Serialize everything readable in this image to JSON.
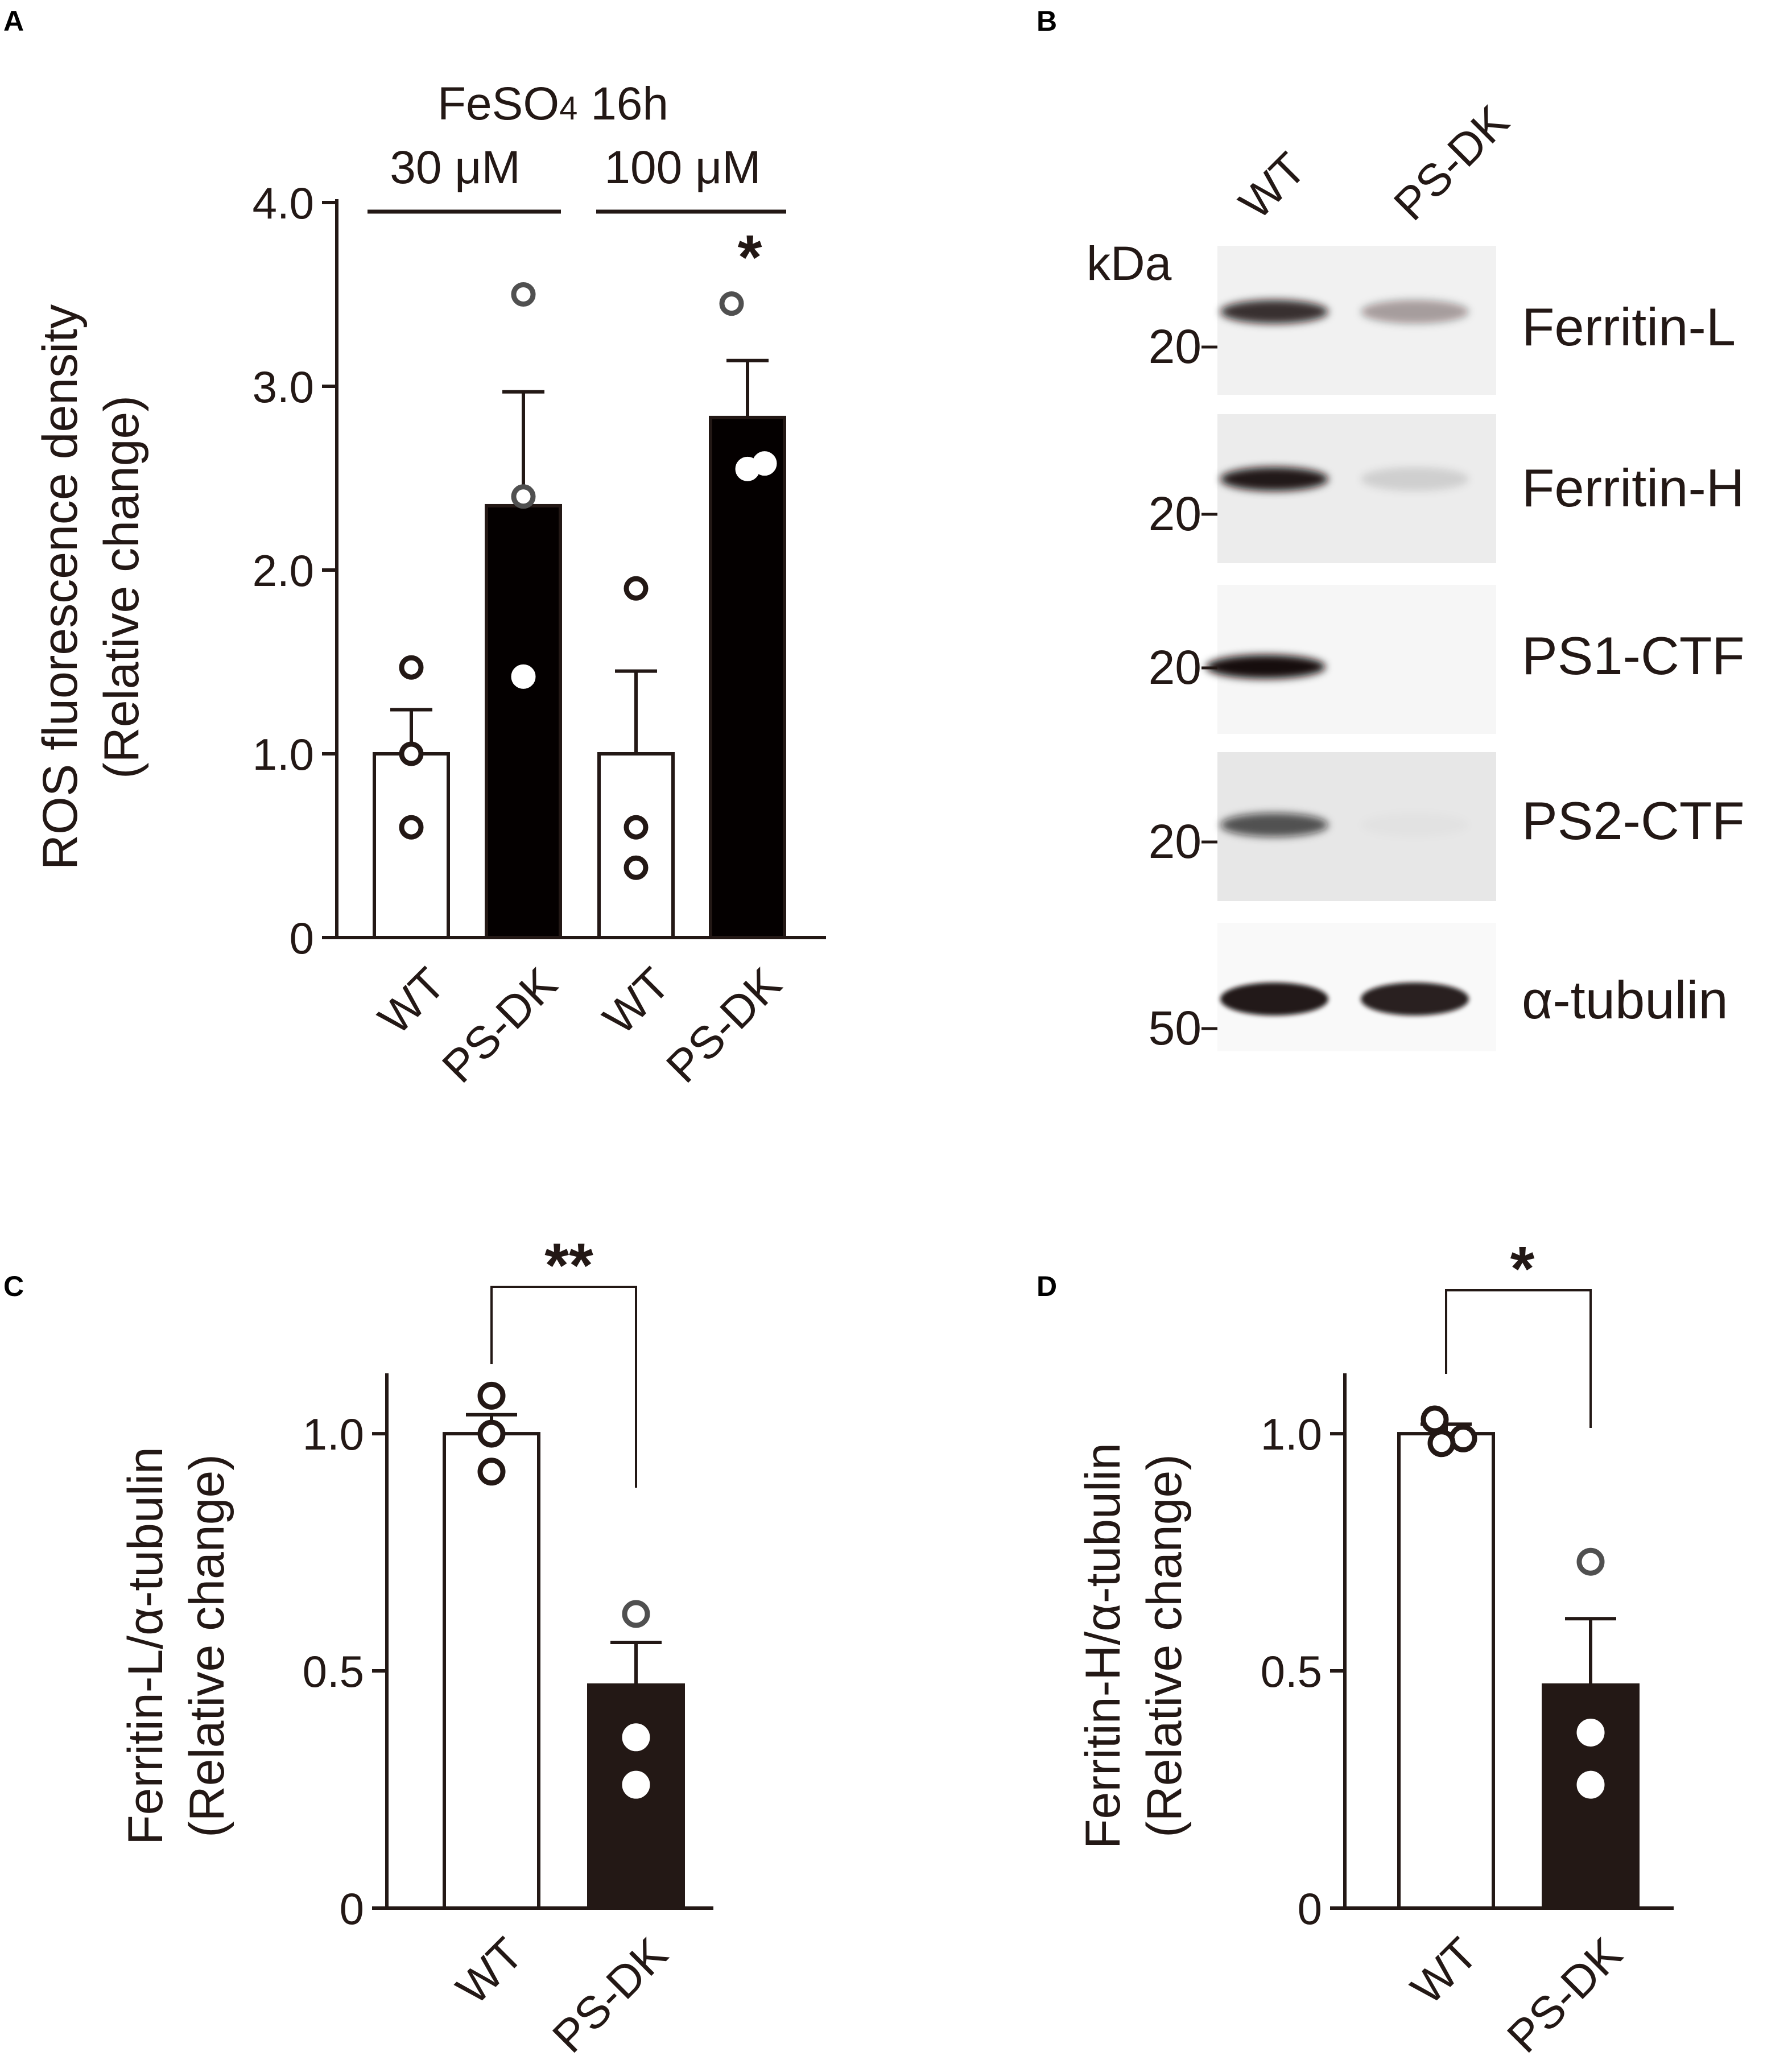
{
  "panels": {
    "a": "A",
    "b": "B",
    "c": "C",
    "d": "D"
  },
  "colors": {
    "wt_fill": "#ffffff",
    "dk_fill_a": "#040000",
    "dk_fill_cd": "#231815",
    "axis": "#231815",
    "dot_outline": "#231815"
  },
  "panel_a": {
    "header": {
      "title": "FeSO4 16h",
      "title_main": "FeSO",
      "title_sub": "4",
      "title_tail": " 16h",
      "group1": "30 μM",
      "group2": "100 μM"
    },
    "significance": "*"
  },
  "panel_b": {
    "lane_labels": [
      "WT",
      "PS-DK"
    ],
    "mw_unit": "kDa",
    "rows": [
      {
        "label": "Ferritin-L",
        "mw": "20",
        "wt_band": 0.85,
        "dk_band": 0.35
      },
      {
        "label": "Ferritin-H",
        "mw": "20",
        "wt_band": 0.95,
        "dk_band": 0.12
      },
      {
        "label": "PS1-CTF",
        "mw": "20",
        "wt_band": 1.0,
        "dk_band": 0.0
      },
      {
        "label": "PS2-CTF",
        "mw": "20",
        "wt_band": 0.7,
        "dk_band": 0.02
      },
      {
        "label": "α-tubulin",
        "mw": "50",
        "wt_band": 0.95,
        "dk_band": 0.92
      }
    ]
  },
  "chart_data": [
    {
      "type": "bar",
      "panel": "A",
      "categories": [
        "WT",
        "PS-DK",
        "WT",
        "PS-DK"
      ],
      "values": [
        1.0,
        2.35,
        1.0,
        2.83
      ],
      "errors": [
        0.24,
        0.62,
        0.45,
        0.31
      ],
      "points": [
        [
          1.47,
          1.0,
          0.6
        ],
        [
          3.5,
          2.4,
          1.42
        ],
        [
          1.9,
          0.6,
          0.38
        ],
        [
          3.45,
          2.55,
          2.58
        ]
      ],
      "ylabel": "ROS fluorescence density",
      "ylabel2": "(Relative change)",
      "ylim": [
        0,
        4.0
      ],
      "yticks": [
        0,
        1.0,
        2.0,
        3.0,
        4.0
      ],
      "ytick_labels": [
        "0",
        "1.0",
        "2.0",
        "3.0",
        "4.0"
      ]
    },
    {
      "type": "bar",
      "panel": "C",
      "categories": [
        "WT",
        "PS-DK"
      ],
      "values": [
        1.0,
        0.47
      ],
      "errors": [
        0.04,
        0.09
      ],
      "points": [
        [
          1.08,
          1.0,
          0.92
        ],
        [
          0.62,
          0.36,
          0.26
        ]
      ],
      "ylabel": "Ferritin-L/α-tubulin",
      "ylabel2": "(Relative change)",
      "ylim": [
        0,
        1.12
      ],
      "yticks": [
        0,
        0.5,
        1.0
      ],
      "ytick_labels": [
        "0",
        "0.5",
        "1.0"
      ],
      "significance": "**"
    },
    {
      "type": "bar",
      "panel": "D",
      "categories": [
        "WT",
        "PS-DK"
      ],
      "values": [
        1.0,
        0.47
      ],
      "errors": [
        0.02,
        0.14
      ],
      "points": [
        [
          1.03,
          0.99,
          0.98
        ],
        [
          0.73,
          0.37,
          0.26
        ]
      ],
      "ylabel": "Ferritin-H/α-tubulin",
      "ylabel2": "(Relative change)",
      "ylim": [
        0,
        1.12
      ],
      "yticks": [
        0,
        0.5,
        1.0
      ],
      "ytick_labels": [
        "0",
        "0.5",
        "1.0"
      ],
      "significance": "*"
    }
  ]
}
